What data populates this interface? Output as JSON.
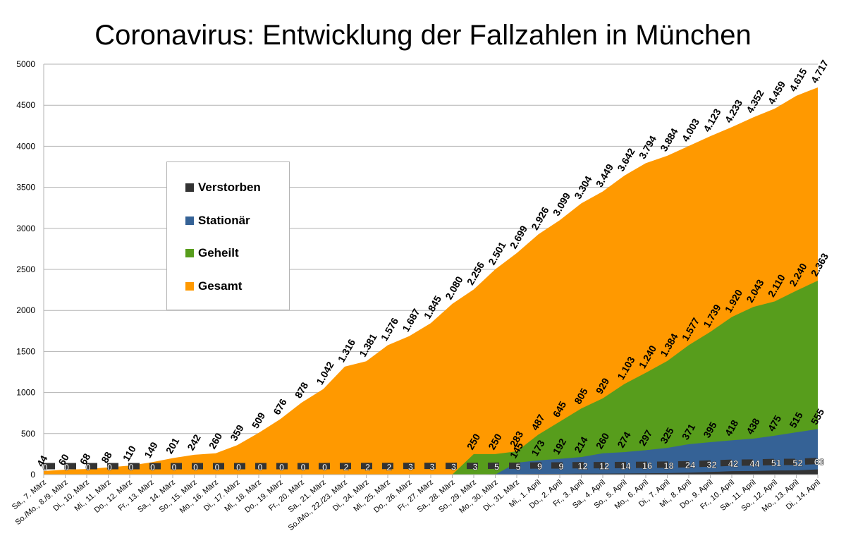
{
  "chart_data": {
    "type": "area",
    "title": "Coronavirus: Entwicklung der Fallzahlen in München",
    "xlabel": "",
    "ylabel": "",
    "ylim": [
      0,
      5000
    ],
    "yticks": [
      0,
      500,
      1000,
      1500,
      2000,
      2500,
      3000,
      3500,
      4000,
      4500,
      5000
    ],
    "grid": true,
    "legend_position": "left",
    "categories": [
      "Sa., 7. März",
      "So./Mo., 8./9. März",
      "Di., 10. März",
      "Mi., 11. März",
      "Do., 12. März",
      "Fr., 13. März",
      "Sa., 14. März",
      "So., 15. März",
      "Mo., 16. März",
      "Di., 17. März",
      "Mi., 18. März",
      "Do., 19. März",
      "Fr., 20. März",
      "Sa., 21. März",
      "So./Mo., 22./23. März",
      "Di., 24. März",
      "Mi., 25. März",
      "Do., 26. März",
      "Fr., 27. März",
      "Sa., 28. März",
      "So., 29. März",
      "Mo., 30. März",
      "Di., 31. März",
      "Mi., 1. April",
      "Do., 2. April",
      "Fr., 3. April",
      "Sa., 4. April",
      "So., 5. April",
      "Mo., 6. April",
      "Di., 7. April",
      "Mi., 8. April",
      "Do., 9. April",
      "Fr., 10. April",
      "Sa., 11. April",
      "So., 12. April",
      "Mo., 13. April",
      "Di., 14. April"
    ],
    "series": [
      {
        "name": "Gesamt",
        "color": "#ff9900",
        "values": [
          44,
          60,
          68,
          88,
          110,
          149,
          201,
          242,
          260,
          359,
          509,
          676,
          878,
          1042,
          1316,
          1381,
          1576,
          1687,
          1845,
          2080,
          2256,
          2501,
          2699,
          2926,
          3099,
          3304,
          3449,
          3642,
          3794,
          3884,
          4003,
          4123,
          4233,
          4352,
          4459,
          4615,
          4717
        ],
        "labels": [
          "44",
          "60",
          "68",
          "88",
          "110",
          "149",
          "201",
          "242",
          "260",
          "359",
          "509",
          "676",
          "878",
          "1.042",
          "1.316",
          "1.381",
          "1.576",
          "1.687",
          "1.845",
          "2.080",
          "2.256",
          "2.501",
          "2.699",
          "2.926",
          "3.099",
          "3.304",
          "3.449",
          "3.642",
          "3.794",
          "3.884",
          "4.003",
          "4.123",
          "4.233",
          "4.352",
          "4.459",
          "4.615",
          "4.717"
        ]
      },
      {
        "name": "Geheilt",
        "color": "#579d1c",
        "values": [
          null,
          null,
          null,
          null,
          null,
          null,
          null,
          null,
          null,
          null,
          null,
          null,
          null,
          null,
          null,
          null,
          null,
          null,
          null,
          null,
          250,
          250,
          283,
          487,
          645,
          805,
          929,
          1103,
          1240,
          1384,
          1577,
          1739,
          1920,
          2043,
          2110,
          2240,
          2363
        ],
        "labels": [
          "",
          "",
          "",
          "",
          "",
          "",
          "",
          "",
          "",
          "",
          "",
          "",
          "",
          "",
          "",
          "",
          "",
          "",
          "",
          "",
          "250",
          "250",
          "283",
          "487",
          "645",
          "805",
          "929",
          "1.103",
          "1.240",
          "1.384",
          "1.577",
          "1.739",
          "1.920",
          "2.043",
          "2.110",
          "2.240",
          "2.363"
        ]
      },
      {
        "name": "Stationär",
        "color": "#356296",
        "values": [
          null,
          null,
          null,
          null,
          null,
          null,
          null,
          null,
          null,
          null,
          null,
          null,
          null,
          null,
          null,
          null,
          null,
          null,
          null,
          null,
          null,
          null,
          145,
          173,
          192,
          214,
          260,
          274,
          297,
          325,
          371,
          395,
          418,
          438,
          475,
          515,
          555
        ],
        "labels": [
          "",
          "",
          "",
          "",
          "",
          "",
          "",
          "",
          "",
          "",
          "",
          "",
          "",
          "",
          "",
          "",
          "",
          "",
          "",
          "",
          "",
          "",
          "145",
          "173",
          "192",
          "214",
          "260",
          "274",
          "297",
          "325",
          "371",
          "395",
          "418",
          "438",
          "475",
          "515",
          "555"
        ]
      },
      {
        "name": "Verstorben",
        "color": "#333333",
        "values": [
          0,
          0,
          0,
          0,
          0,
          0,
          0,
          0,
          0,
          0,
          0,
          0,
          0,
          0,
          2,
          2,
          2,
          3,
          3,
          3,
          3,
          5,
          5,
          9,
          9,
          12,
          12,
          14,
          16,
          18,
          24,
          32,
          42,
          44,
          51,
          52,
          63
        ],
        "labels": [
          "0",
          "0",
          "0",
          "0",
          "0",
          "0",
          "0",
          "0",
          "0",
          "0",
          "0",
          "0",
          "0",
          "0",
          "2",
          "2",
          "2",
          "3",
          "3",
          "3",
          "3",
          "5",
          "5",
          "9",
          "9",
          "12",
          "12",
          "14",
          "16",
          "18",
          "24",
          "32",
          "42",
          "44",
          "51",
          "52",
          "63"
        ]
      }
    ]
  },
  "legend": {
    "items": [
      {
        "label": "Verstorben",
        "color": "#333333"
      },
      {
        "label": "Stationär",
        "color": "#356296"
      },
      {
        "label": "Geheilt",
        "color": "#579d1c"
      },
      {
        "label": "Gesamt",
        "color": "#ff9900"
      }
    ]
  }
}
